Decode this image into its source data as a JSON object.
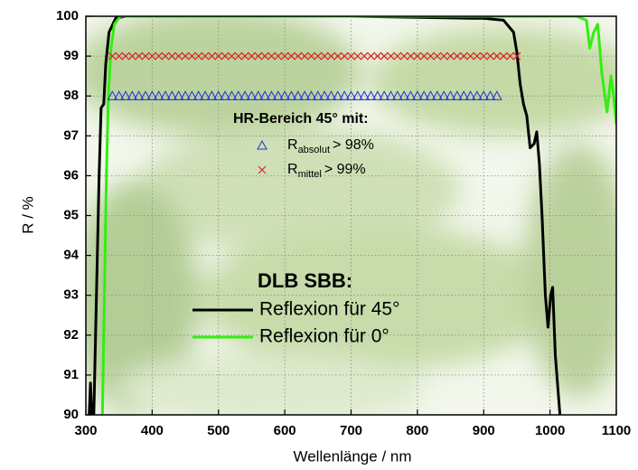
{
  "chart_data": {
    "type": "line",
    "x_label": "Wellenlänge / nm",
    "y_label": "R / %",
    "xlim": [
      300,
      1100
    ],
    "ylim": [
      90,
      100
    ],
    "xticks": [
      300,
      400,
      500,
      600,
      700,
      800,
      900,
      1000,
      1100
    ],
    "yticks": [
      90,
      91,
      92,
      93,
      94,
      95,
      96,
      97,
      98,
      99,
      100
    ],
    "grid": true,
    "series": [
      {
        "name": "Reflexion für 45°",
        "color": "#000000",
        "x": [
          305,
          307,
          309,
          312,
          316,
          320,
          323,
          327,
          330,
          335,
          345,
          360,
          500,
          700,
          880,
          900,
          930,
          945,
          950,
          955,
          960,
          965,
          970,
          976,
          980,
          984,
          988,
          993,
          997,
          1001,
          1004,
          1008,
          1015
        ],
        "values": [
          90,
          90.8,
          90,
          90,
          93,
          96,
          97.7,
          97.8,
          98.8,
          99.6,
          99.95,
          100,
          100,
          100,
          99.95,
          99.95,
          99.9,
          99.6,
          99.1,
          98.3,
          97.8,
          97.5,
          96.7,
          96.8,
          97.1,
          96.3,
          95,
          93,
          92.2,
          93,
          93.2,
          91.5,
          90
        ]
      },
      {
        "name": "Reflexion für 0°",
        "color": "#33ee11",
        "x": [
          325,
          328,
          331,
          334,
          338,
          343,
          352,
          600,
          900,
          1040,
          1055,
          1060,
          1066,
          1072,
          1078,
          1086,
          1092,
          1096,
          1100
        ],
        "values": [
          90,
          93,
          96,
          98,
          99.2,
          99.8,
          100,
          100,
          100,
          100,
          99.9,
          99.2,
          99.6,
          99.8,
          98.6,
          97.6,
          98.5,
          98,
          97.3
        ]
      }
    ],
    "legend_title": "DLB SBB:",
    "markers": {
      "title": "HR-Bereich 45° mit:",
      "series": [
        {
          "name": "R",
          "name_sub": "absolut",
          "name_tail": "> 98%",
          "marker": "triangle",
          "color": "#2233cc",
          "x": [
            340,
            350,
            360,
            370,
            380,
            390,
            400,
            410,
            420,
            430,
            440,
            450,
            460,
            470,
            480,
            490,
            500,
            510,
            520,
            530,
            540,
            550,
            560,
            570,
            580,
            590,
            600,
            610,
            620,
            630,
            640,
            650,
            660,
            670,
            680,
            690,
            700,
            710,
            720,
            730,
            740,
            750,
            760,
            770,
            780,
            790,
            800,
            810,
            820,
            830,
            840,
            850,
            860,
            870,
            880,
            890,
            900,
            910,
            920
          ],
          "values": [
            98,
            98,
            98,
            98,
            98,
            98,
            98,
            98,
            98,
            98,
            98,
            98,
            98,
            98,
            98,
            98,
            98,
            98,
            98,
            98,
            98,
            98,
            98,
            98,
            98,
            98,
            98,
            98,
            98,
            98,
            98,
            98,
            98,
            98,
            98,
            98,
            98,
            98,
            98,
            98,
            98,
            98,
            98,
            98,
            98,
            98,
            98,
            98,
            98,
            98,
            98,
            98,
            98,
            98,
            98,
            98,
            98,
            98,
            98
          ]
        },
        {
          "name": "R",
          "name_sub": "mittel",
          "name_tail": "> 99%",
          "marker": "cross",
          "color": "#dd2222",
          "x": [
            340,
            350,
            360,
            370,
            380,
            390,
            400,
            410,
            420,
            430,
            440,
            450,
            460,
            470,
            480,
            490,
            500,
            510,
            520,
            530,
            540,
            550,
            560,
            570,
            580,
            590,
            600,
            610,
            620,
            630,
            640,
            650,
            660,
            670,
            680,
            690,
            700,
            710,
            720,
            730,
            740,
            750,
            760,
            770,
            780,
            790,
            800,
            810,
            820,
            830,
            840,
            850,
            860,
            870,
            880,
            890,
            900,
            910,
            920,
            930,
            940,
            950
          ],
          "values": [
            99,
            99,
            99,
            99,
            99,
            99,
            99,
            99,
            99,
            99,
            99,
            99,
            99,
            99,
            99,
            99,
            99,
            99,
            99,
            99,
            99,
            99,
            99,
            99,
            99,
            99,
            99,
            99,
            99,
            99,
            99,
            99,
            99,
            99,
            99,
            99,
            99,
            99,
            99,
            99,
            99,
            99,
            99,
            99,
            99,
            99,
            99,
            99,
            99,
            99,
            99,
            99,
            99,
            99,
            99,
            99,
            99,
            99,
            99,
            99,
            99,
            99
          ]
        }
      ]
    }
  }
}
